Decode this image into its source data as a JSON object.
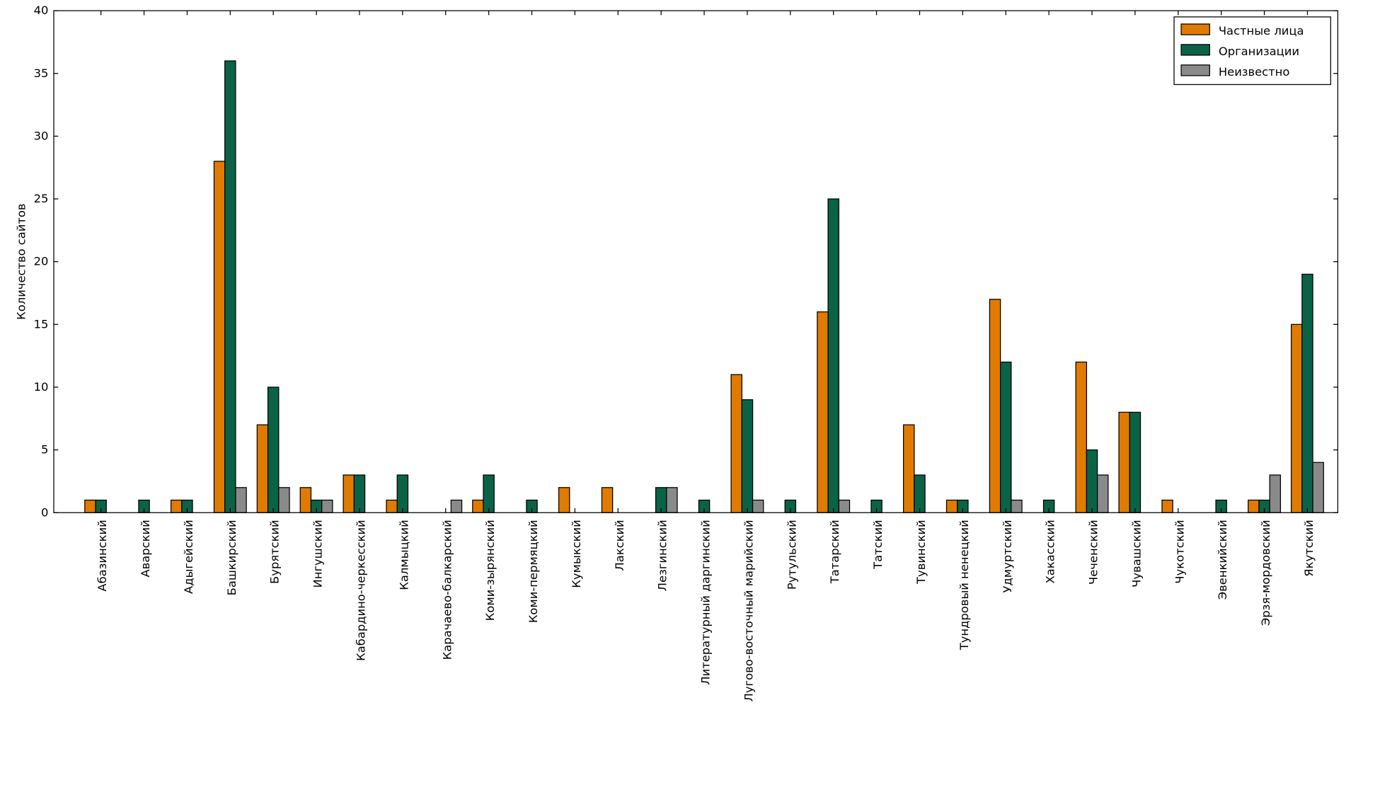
{
  "chart_data": {
    "type": "bar",
    "y_label": "Количество сайтов",
    "categories": [
      "Абазинский",
      "Аварский",
      "Адыгейский",
      "Башкирский",
      "Бурятский",
      "Ингушский",
      "Кабардино-черкесский",
      "Калмыцкий",
      "Карачаево-балкарский",
      "Коми-зырянский",
      "Коми-пермяцкий",
      "Кумыкский",
      "Лакский",
      "Лезгинский",
      "Литературный даргинский",
      "Лугово-восточный марийский",
      "Рутульский",
      "Татарский",
      "Татский",
      "Тувинский",
      "Тундровый ненецкий",
      "Удмуртский",
      "Хакасский",
      "Чеченский",
      "Чувашский",
      "Чукотский",
      "Эвенкийский",
      "Эрзя-мордовский",
      "Якутский"
    ],
    "series": [
      {
        "name": "Частные лица",
        "color": "#e07b00",
        "values": [
          1,
          0,
          1,
          28,
          7,
          2,
          3,
          1,
          0,
          1,
          0,
          2,
          2,
          0,
          0,
          11,
          0,
          16,
          0,
          7,
          1,
          17,
          0,
          12,
          8,
          1,
          0,
          1,
          15
        ]
      },
      {
        "name": "Организации",
        "color": "#0b6347",
        "values": [
          1,
          1,
          1,
          36,
          10,
          1,
          3,
          3,
          0,
          3,
          1,
          0,
          0,
          2,
          1,
          9,
          1,
          25,
          1,
          3,
          1,
          12,
          1,
          5,
          8,
          0,
          1,
          1,
          19
        ]
      },
      {
        "name": "Неизвестно",
        "color": "#8a8a8a",
        "values": [
          0,
          0,
          0,
          2,
          2,
          1,
          0,
          0,
          1,
          0,
          0,
          0,
          0,
          2,
          0,
          1,
          0,
          1,
          0,
          0,
          0,
          1,
          0,
          3,
          0,
          0,
          0,
          3,
          4
        ]
      }
    ],
    "ylim": [
      0,
      40
    ],
    "yticks": [
      0,
      5,
      10,
      15,
      20,
      25,
      30,
      35,
      40
    ],
    "legend": "upper right"
  }
}
